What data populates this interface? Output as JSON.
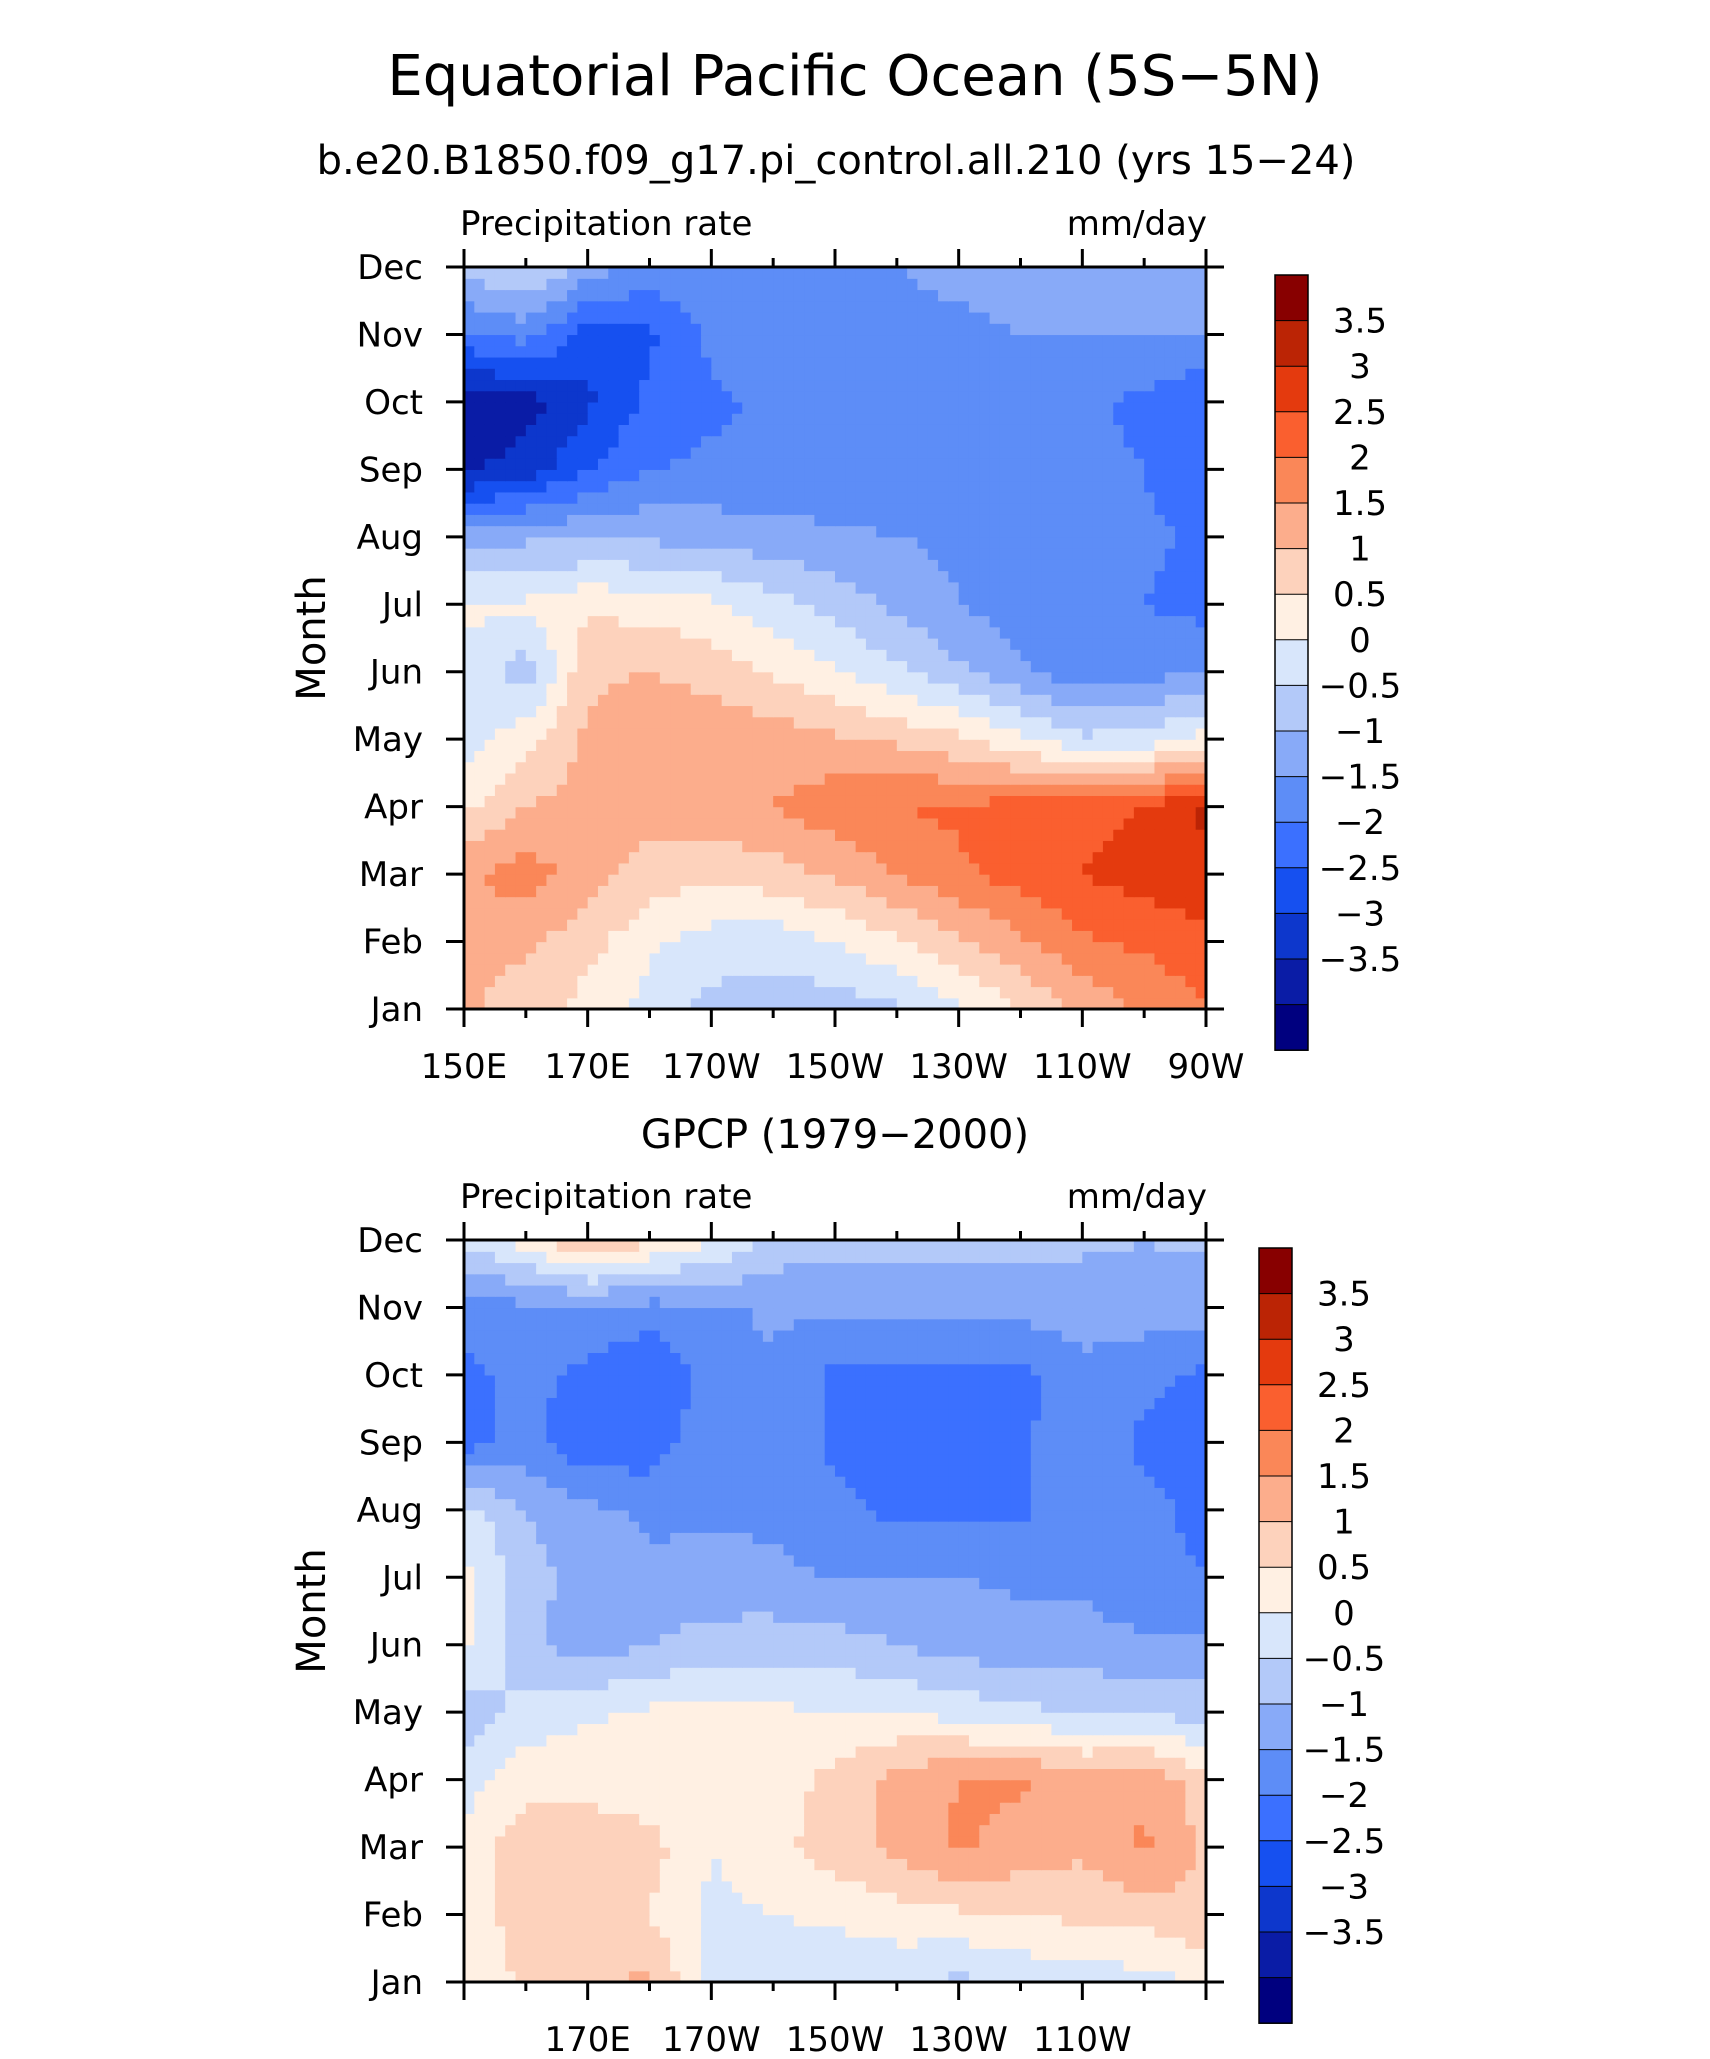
{
  "figure": {
    "title": "Equatorial Pacific Ocean (5S−5N)"
  },
  "colorbar": {
    "colors": [
      "#00007f",
      "#0a1ca6",
      "#0d37cc",
      "#1650f0",
      "#3b70ff",
      "#5d8df7",
      "#88aaf8",
      "#b3c9f9",
      "#d8e6fb",
      "#fff0e3",
      "#fdd2bc",
      "#fcad8c",
      "#fa8758",
      "#fa5f2f",
      "#e43a0e",
      "#bb2405",
      "#880000"
    ],
    "labels": [
      "3.5",
      "3",
      "2.5",
      "2",
      "1.5",
      "1",
      "0.5",
      "0",
      "−0.5",
      "−1",
      "−1.5",
      "−2",
      "−2.5",
      "−3",
      "−3.5"
    ]
  },
  "chart_data": [
    {
      "type": "heatmap",
      "subtitle": "b.e20.B1850.f09_g17.pi_control.all.210 (yrs 15−24)",
      "left_label": "Precipitation rate",
      "right_label": "mm/day",
      "ylabel": "Month",
      "x_ticks": [
        "150E",
        "170E",
        "170W",
        "150W",
        "130W",
        "110W",
        "90W"
      ],
      "y_ticks": [
        "Jan",
        "Feb",
        "Mar",
        "Apr",
        "May",
        "Jun",
        "Jul",
        "Aug",
        "Sep",
        "Oct",
        "Nov",
        "Dec"
      ],
      "xlim_deg_east": [
        150,
        270
      ],
      "levels": [
        -3.5,
        -3,
        -2.5,
        -2,
        -1.5,
        -1,
        -0.5,
        0,
        0.5,
        1,
        1.5,
        2,
        2.5,
        3,
        3.5
      ],
      "x": [
        150,
        160,
        170,
        180,
        190,
        200,
        210,
        220,
        230,
        240,
        250,
        260,
        270
      ],
      "months": [
        "Jan",
        "Feb",
        "Mar",
        "Apr",
        "May",
        "Jun",
        "Jul",
        "Aug",
        "Sep",
        "Oct",
        "Nov",
        "Dec"
      ],
      "z": [
        [
          1.6,
          1.2,
          0.8,
          0.3,
          -0.2,
          -0.3,
          -0.3,
          -0.1,
          0.4,
          1.0,
          1.6,
          2.1,
          2.5
        ],
        [
          1.7,
          1.6,
          1.2,
          0.6,
          0.3,
          0.2,
          0.5,
          0.9,
          1.4,
          1.9,
          2.4,
          2.6,
          2.8
        ],
        [
          1.9,
          2.3,
          1.7,
          1.3,
          1.1,
          1.3,
          1.6,
          2.0,
          2.4,
          2.7,
          3.0,
          3.2,
          3.4
        ],
        [
          0.9,
          1.5,
          1.7,
          1.7,
          1.8,
          2.0,
          2.3,
          2.5,
          2.6,
          2.7,
          2.8,
          3.0,
          3.6
        ],
        [
          0.3,
          0.8,
          1.6,
          1.9,
          1.9,
          1.8,
          1.6,
          1.4,
          1.1,
          0.6,
          0.1,
          0.2,
          0.7
        ],
        [
          0.4,
          -0.3,
          1.4,
          1.5,
          1.3,
          0.9,
          0.6,
          0.1,
          -0.4,
          -0.9,
          -1.3,
          -1.2,
          -1.0
        ],
        [
          0.6,
          0.6,
          0.9,
          0.8,
          0.6,
          0.2,
          -0.2,
          -0.6,
          -1.0,
          -1.3,
          -1.4,
          -1.5,
          -1.7
        ],
        [
          -0.8,
          -0.6,
          -0.6,
          -0.6,
          -0.7,
          -0.8,
          -0.9,
          -1.0,
          -1.1,
          -1.2,
          -1.3,
          -1.4,
          -1.6
        ],
        [
          -3.1,
          -2.8,
          -2.0,
          -1.5,
          -1.4,
          -1.4,
          -1.4,
          -1.4,
          -1.4,
          -1.4,
          -1.4,
          -1.5,
          -1.9
        ],
        [
          -3.3,
          -3.2,
          -2.6,
          -1.9,
          -1.6,
          -1.4,
          -1.4,
          -1.3,
          -1.3,
          -1.3,
          -1.4,
          -1.6,
          -2.0
        ],
        [
          -1.6,
          -1.3,
          -2.2,
          -2.1,
          -1.4,
          -1.2,
          -1.2,
          -1.1,
          -1.1,
          -1.0,
          -1.0,
          -1.0,
          -1.0
        ],
        [
          -0.3,
          0.1,
          -0.7,
          -1.2,
          -1.1,
          -1.0,
          -1.0,
          -1.0,
          -0.9,
          -0.8,
          -0.8,
          -0.7,
          -0.6
        ]
      ]
    },
    {
      "type": "heatmap",
      "subtitle": "GPCP (1979−2000)",
      "left_label": "Precipitation rate",
      "right_label": "mm/day",
      "ylabel": "Month",
      "x_ticks": [
        "170E",
        "170W",
        "150W",
        "130W",
        "110W"
      ],
      "y_ticks": [
        "Jan",
        "Feb",
        "Mar",
        "Apr",
        "May",
        "Jun",
        "Jul",
        "Aug",
        "Sep",
        "Oct",
        "Nov",
        "Dec"
      ],
      "xlim_deg_east": [
        150,
        270
      ],
      "levels": [
        -3.5,
        -3,
        -2.5,
        -2,
        -1.5,
        -1,
        -0.5,
        0,
        0.5,
        1,
        1.5,
        2,
        2.5,
        3,
        3.5
      ],
      "x": [
        150,
        160,
        170,
        180,
        190,
        200,
        210,
        220,
        230,
        240,
        250,
        260,
        270
      ],
      "months": [
        "Jan",
        "Feb",
        "Mar",
        "Apr",
        "May",
        "Jun",
        "Jul",
        "Aug",
        "Sep",
        "Oct",
        "Nov",
        "Dec"
      ],
      "z": [
        [
          0.6,
          1.1,
          1.4,
          1.6,
          0.3,
          0.2,
          0.1,
          0.1,
          -0.1,
          0.1,
          0.2,
          0.3,
          0.6
        ],
        [
          0.8,
          1.2,
          1.3,
          1.0,
          0.4,
          0.5,
          0.6,
          0.8,
          0.9,
          1.0,
          1.1,
          1.2,
          1.4
        ],
        [
          0.6,
          1.4,
          1.2,
          1.2,
          0.5,
          0.8,
          1.3,
          1.6,
          2.1,
          1.8,
          1.6,
          2.1,
          1.4
        ],
        [
          0.3,
          0.8,
          0.9,
          0.7,
          0.6,
          0.7,
          1.2,
          1.7,
          2.0,
          2.1,
          1.7,
          1.9,
          1.2
        ],
        [
          -0.3,
          0.2,
          0.4,
          0.6,
          0.6,
          0.6,
          0.5,
          0.5,
          0.3,
          0.1,
          0.0,
          -0.1,
          -0.2
        ],
        [
          0.6,
          -0.4,
          -0.8,
          -0.5,
          -0.3,
          -0.2,
          -0.3,
          -0.5,
          -0.7,
          -0.8,
          -0.8,
          -0.9,
          -0.9
        ],
        [
          0.7,
          -0.3,
          -0.7,
          -0.9,
          -0.8,
          -0.9,
          -1.0,
          -1.0,
          -1.0,
          -1.1,
          -1.1,
          -1.4,
          -1.5
        ],
        [
          0.2,
          -0.5,
          -0.9,
          -1.1,
          -1.1,
          -1.1,
          -1.4,
          -1.6,
          -1.6,
          -1.6,
          -1.1,
          -1.4,
          -1.6
        ],
        [
          -1.7,
          -1.3,
          -1.9,
          -1.8,
          -1.1,
          -1.1,
          -1.6,
          -1.7,
          -1.7,
          -1.6,
          -1.1,
          -1.6,
          -1.7
        ],
        [
          -1.6,
          -1.4,
          -1.6,
          -2.0,
          -1.3,
          -1.1,
          -1.6,
          -1.7,
          -1.7,
          -1.7,
          -1.1,
          -1.4,
          -1.6
        ],
        [
          -1.3,
          -1.1,
          -1.1,
          -1.2,
          -1.1,
          -0.9,
          -0.9,
          -0.8,
          -0.8,
          -0.8,
          -0.8,
          -0.7,
          -0.8
        ],
        [
          0.1,
          0.7,
          1.6,
          1.1,
          0.6,
          -0.2,
          -0.3,
          -0.3,
          -0.4,
          -0.4,
          -0.4,
          -0.5,
          -0.4
        ]
      ]
    }
  ]
}
